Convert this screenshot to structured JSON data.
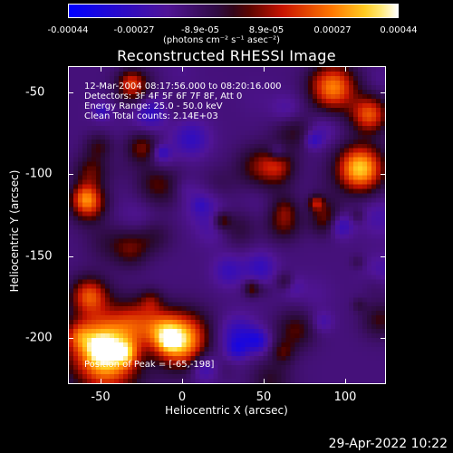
{
  "colorbar": {
    "tick_labels": [
      "-0.00044",
      "-0.00027",
      "-8.9e-05",
      "8.9e-05",
      "0.00027",
      "0.00044"
    ],
    "unit": "(photons cm⁻² s⁻¹ asec⁻²)"
  },
  "title": "Reconstructed RHESSI Image",
  "info": {
    "time": "12-Mar-2004 08:17:56.000 to 08:20:16.000",
    "detectors": "Detectors: 3F 4F 5F 6F 7F 8F, Att 0",
    "energy": "Energy Range: 25.0 - 50.0 keV",
    "method": "Clean     Total counts: 2.14E+03",
    "peak": "Position of Peak = [-65,-198]"
  },
  "axes": {
    "xlabel": "Heliocentric X (arcsec)",
    "ylabel": "Heliocentric Y (arcsec)",
    "x_ticks": [
      "-50",
      "0",
      "50",
      "100"
    ],
    "y_ticks": [
      "-50",
      "-100",
      "-150",
      "-200"
    ],
    "x_range": [
      -70,
      125
    ],
    "y_range": [
      -230,
      -35
    ]
  },
  "datestamp": "29-Apr-2022 10:22"
}
